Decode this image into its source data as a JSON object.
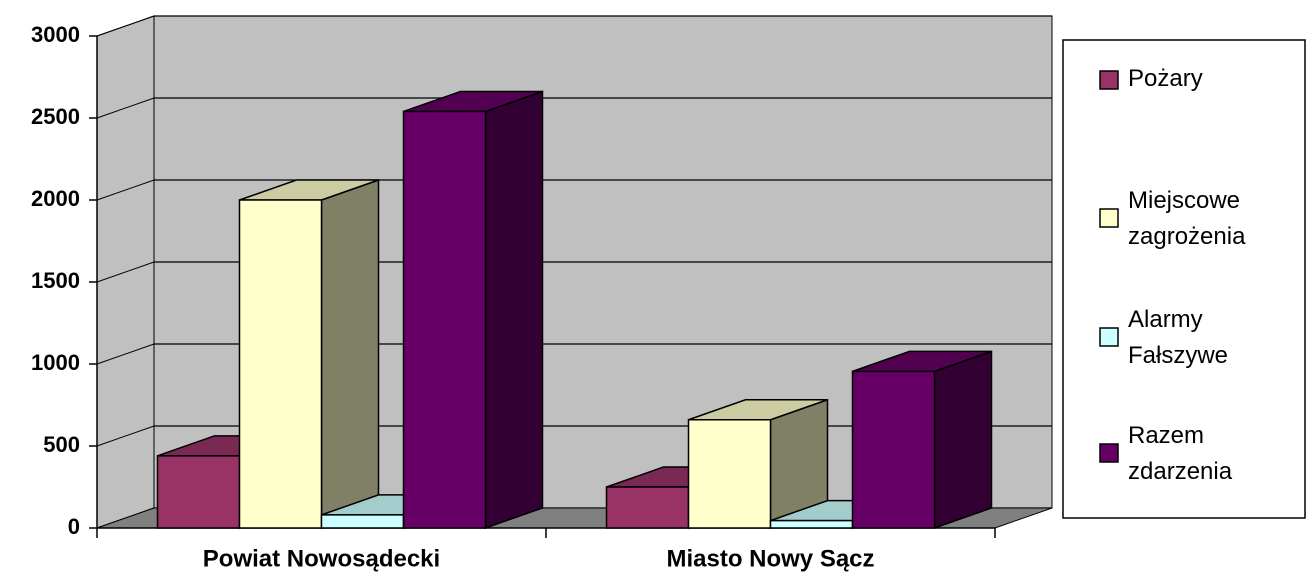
{
  "chart_data": {
    "type": "bar3d",
    "categories": [
      "Powiat Nowosądecki",
      "Miasto Nowy Sącz"
    ],
    "series": [
      {
        "name": "Pożary",
        "color": "#993366",
        "values": [
          440,
          250
        ]
      },
      {
        "name": "Miejscowe zagrożenia",
        "color": "#ffffcc",
        "values": [
          2000,
          660
        ]
      },
      {
        "name": "Alarmy Fałszywe",
        "color": "#ccffff",
        "values": [
          80,
          45
        ]
      },
      {
        "name": "Razem zdarzenia",
        "color": "#660066",
        "values": [
          2540,
          955
        ]
      }
    ],
    "ylim": [
      0,
      3000
    ],
    "yticks": [
      0,
      500,
      1000,
      1500,
      2000,
      2500,
      3000
    ],
    "grid": true,
    "legend": "right"
  }
}
